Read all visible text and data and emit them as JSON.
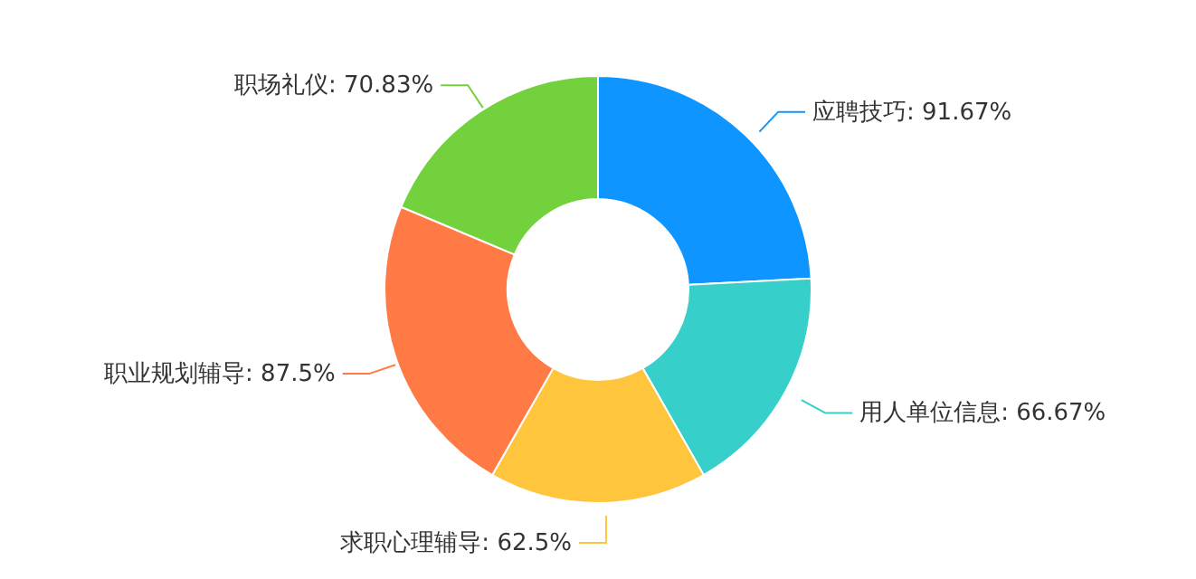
{
  "chart_data": {
    "type": "donut",
    "categories": [
      "应聘技巧",
      "用人单位信息",
      "求职心理辅导",
      "职业规划辅导",
      "职场礼仪"
    ],
    "values": [
      91.67,
      66.67,
      62.5,
      87.5,
      70.83
    ],
    "value_labels": [
      "91.67%",
      "66.67%",
      "62.5%",
      "87.5%",
      "70.83%"
    ],
    "colors": [
      "#0e95ff",
      "#36cfc9",
      "#ffc53d",
      "#ff7a45",
      "#73d13d"
    ]
  }
}
